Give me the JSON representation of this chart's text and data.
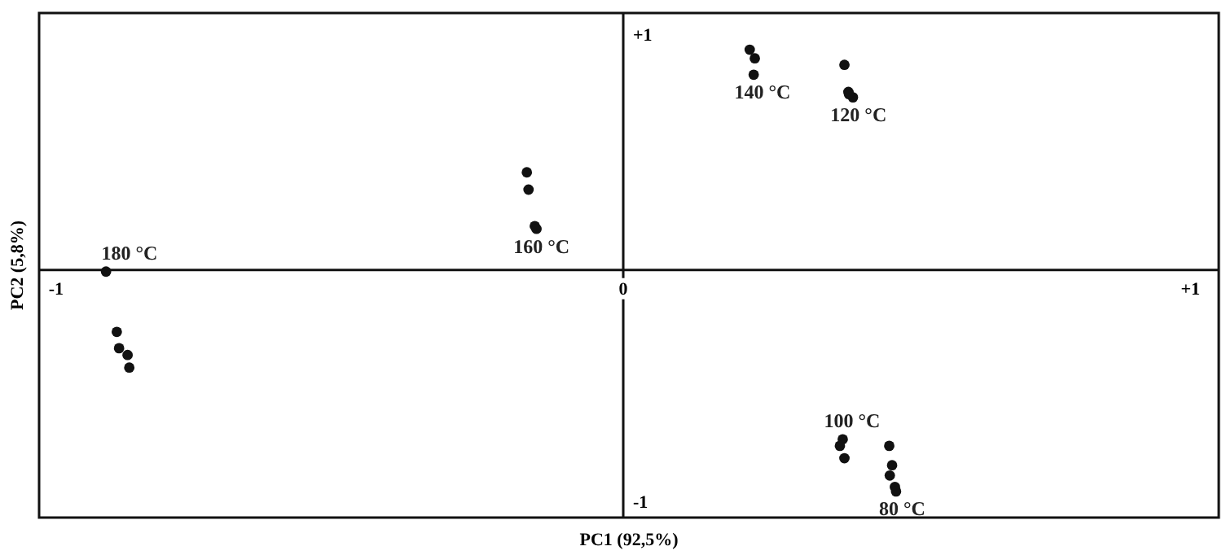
{
  "chart_data": {
    "type": "scatter",
    "xlabel": "PC1 (92,5%)",
    "ylabel": "PC2 (5,8%)",
    "xlim": [
      -1.03,
      1.05
    ],
    "ylim": [
      -1.06,
      1.1
    ],
    "xticks": [
      {
        "value": -1,
        "label": "-1"
      },
      0,
      {
        "value": 1,
        "label": "+1"
      }
    ],
    "yticks": [
      {
        "value": -1,
        "label": "-1"
      },
      {
        "value": 1,
        "label": "+1"
      }
    ],
    "marker": "circle",
    "series": [
      {
        "name": "180 °C",
        "color": "#111111",
        "x": [
          -0.912,
          -0.893,
          -0.889,
          -0.874,
          -0.871
        ],
        "values": [
          -0.007,
          -0.265,
          -0.335,
          -0.364,
          -0.418
        ]
      },
      {
        "name": "160 °C",
        "color": "#111111",
        "x": [
          -0.17,
          -0.167,
          -0.156,
          -0.153
        ],
        "values": [
          0.418,
          0.344,
          0.188,
          0.176
        ]
      },
      {
        "name": "140 °C",
        "color": "#111111",
        "x": [
          0.223,
          0.232,
          0.23
        ],
        "values": [
          0.943,
          0.906,
          0.836
        ]
      },
      {
        "name": "120 °C",
        "color": "#111111",
        "x": [
          0.39,
          0.397,
          0.405,
          0.398
        ],
        "values": [
          0.878,
          0.762,
          0.739,
          0.753
        ]
      },
      {
        "name": "100 °C",
        "color": "#111111",
        "x": [
          0.387,
          0.382,
          0.39
        ],
        "values": [
          -0.725,
          -0.753,
          -0.806
        ]
      },
      {
        "name": "80 °C",
        "color": "#111111",
        "x": [
          0.469,
          0.474,
          0.47,
          0.479,
          0.481
        ],
        "values": [
          -0.753,
          -0.836,
          -0.88,
          -0.929,
          -0.948
        ]
      }
    ]
  }
}
